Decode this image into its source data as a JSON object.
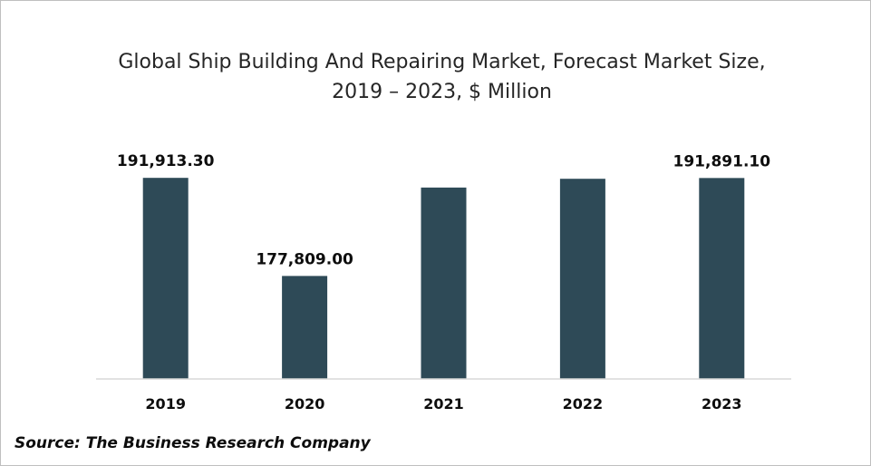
{
  "chart_data": {
    "type": "bar",
    "title": "Global Ship Building And Repairing Market, Forecast Market Size, 2019 – 2023, $ Million",
    "categories": [
      "2019",
      "2020",
      "2021",
      "2022",
      "2023"
    ],
    "values": [
      191913.3,
      177809.0,
      190520,
      191780,
      191891.1
    ],
    "data_labels": [
      "191,913.30",
      "177,809.00",
      "",
      "",
      "191,891.10"
    ],
    "ylim": [
      163000,
      193500
    ],
    "xlabel": "",
    "ylabel": "",
    "grid": false,
    "legend": "none",
    "bar_color": "#2e4a57"
  },
  "source": "Source: The Business Research Company"
}
